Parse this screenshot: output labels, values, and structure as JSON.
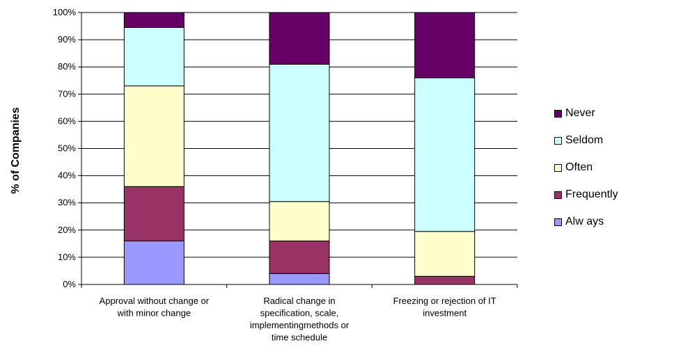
{
  "chart_data": {
    "type": "bar",
    "stacked": true,
    "percent_stacked": true,
    "categories": [
      [
        "Approval without change or",
        "with minor change"
      ],
      [
        "Radical change in",
        "specification, scale,",
        "implementingmethods or",
        "time schedule"
      ],
      [
        "Freezing or rejection of IT",
        "investment"
      ]
    ],
    "series": [
      {
        "name": "Always",
        "color": "#9999ff",
        "values": [
          16,
          4,
          0
        ]
      },
      {
        "name": "Frequently",
        "color": "#993366",
        "values": [
          20,
          12,
          3
        ]
      },
      {
        "name": "Often",
        "color": "#ffffcc",
        "values": [
          37,
          14.5,
          16.5
        ]
      },
      {
        "name": "Seldom",
        "color": "#ccffff",
        "values": [
          21.5,
          50.5,
          56.5
        ]
      },
      {
        "name": "Never",
        "color": "#660066",
        "values": [
          5.5,
          19,
          24
        ]
      }
    ],
    "ylabel": "% of Companies",
    "ylim": [
      0,
      100
    ],
    "yticks": [
      "0%",
      "10%",
      "20%",
      "30%",
      "40%",
      "50%",
      "60%",
      "70%",
      "80%",
      "90%",
      "100%"
    ],
    "grid": true,
    "legend_position": "right",
    "legend_order": [
      "Never",
      "Seldom",
      "Often",
      "Frequently",
      "Alw ays"
    ]
  }
}
